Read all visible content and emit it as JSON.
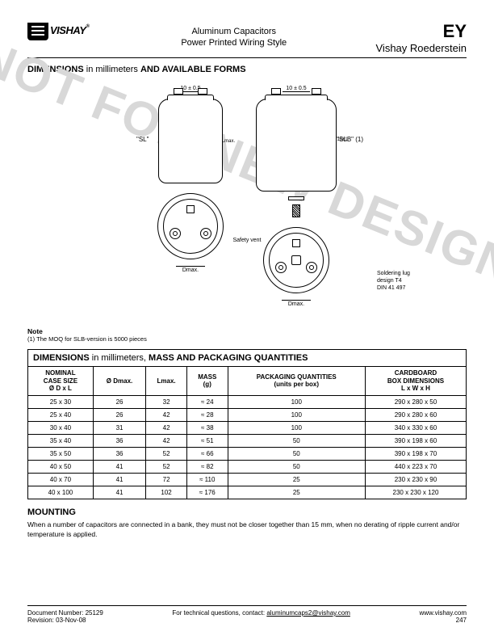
{
  "header": {
    "logo_text": "VISHAY",
    "center_line1": "Aluminum Capacitors",
    "center_line2": "Power Printed Wiring Style",
    "series": "EY",
    "brand": "Vishay Roederstein"
  },
  "section1_title_bold1": "DIMENSIONS",
  "section1_title_thin": " in millimeters ",
  "section1_title_bold2": "AND AVAILABLE FORMS",
  "watermark": "NOT FOR NEW DESIGN",
  "diagram": {
    "top_dim": "10 ± 0.5",
    "label_sl": "\"SL\"",
    "label_slb": "\"SLB\" (1)",
    "vdim_left": "Lmax.",
    "vdim_right_top": "10±1",
    "vdim_right_l": "Lmax.",
    "safety_vent": "Safety vent",
    "dmax": "Dmax.",
    "stud_m": "M8",
    "stud_dim": "12",
    "lug_note_l1": "Soldering lug",
    "lug_note_l2": "design T4",
    "lug_note_l3": "DIN 41 497"
  },
  "note_heading": "Note",
  "note_text": "(1) The MOQ for SLB-version is 5000 pieces",
  "table_title_bold1": "DIMENSIONS",
  "table_title_thin": " in millimeters, ",
  "table_title_bold2": "MASS AND PACKAGING QUANTITIES",
  "table": {
    "columns": [
      "NOMINAL\nCASE SIZE\nØ D x L",
      "Ø Dmax.",
      "Lmax.",
      "MASS\n(g)",
      "PACKAGING QUANTITIES\n(units per box)",
      "CARDBOARD\nBOX DIMENSIONS\nL x W x H"
    ],
    "rows": [
      [
        "25 x 30",
        "26",
        "32",
        "≈ 24",
        "100",
        "290 x 280 x 50"
      ],
      [
        "25 x 40",
        "26",
        "42",
        "≈ 28",
        "100",
        "290 x 280 x 60"
      ],
      [
        "30 x 40",
        "31",
        "42",
        "≈ 38",
        "100",
        "340 x 330 x 60"
      ],
      [
        "35 x 40",
        "36",
        "42",
        "≈ 51",
        "50",
        "390 x 198 x 60"
      ],
      [
        "35 x 50",
        "36",
        "52",
        "≈ 66",
        "50",
        "390 x 198 x 70"
      ],
      [
        "40 x 50",
        "41",
        "52",
        "≈ 82",
        "50",
        "440 x 223 x 70"
      ],
      [
        "40 x 70",
        "41",
        "72",
        "≈ 110",
        "25",
        "230 x 230 x 90"
      ],
      [
        "40 x 100",
        "41",
        "102",
        "≈ 176",
        "25",
        "230 x 230 x 120"
      ]
    ]
  },
  "mounting_heading": "MOUNTING",
  "mounting_text": "When a number of capacitors are connected in a bank, they must not be closer together than 15 mm, when no derating of ripple current and/or temperature is applied.",
  "footer": {
    "doc_num": "Document Number: 25129",
    "revision": "Revision: 03-Nov-08",
    "contact_prefix": "For technical questions, contact: ",
    "contact_email": "aluminumcaps2@vishay.com",
    "url": "www.vishay.com",
    "page": "247"
  }
}
